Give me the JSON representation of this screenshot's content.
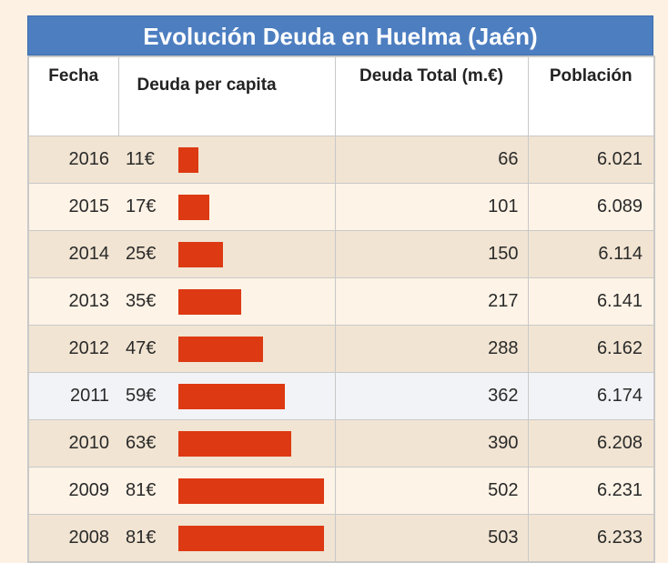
{
  "chart_data": {
    "type": "table",
    "title": "Evolución Deuda en Huelma (Jaén)",
    "columns": [
      "Fecha",
      "Deuda per capita",
      "Deuda Total (m.€)",
      "Población"
    ],
    "bar_max_value": 81,
    "bar_color": "#dd3913",
    "rows": [
      {
        "fecha": "2016",
        "per_capita_label": "11€",
        "per_capita": 11,
        "total": "66",
        "poblacion": "6.021"
      },
      {
        "fecha": "2015",
        "per_capita_label": "17€",
        "per_capita": 17,
        "total": "101",
        "poblacion": "6.089"
      },
      {
        "fecha": "2014",
        "per_capita_label": "25€",
        "per_capita": 25,
        "total": "150",
        "poblacion": "6.114"
      },
      {
        "fecha": "2013",
        "per_capita_label": "35€",
        "per_capita": 35,
        "total": "217",
        "poblacion": "6.141"
      },
      {
        "fecha": "2012",
        "per_capita_label": "47€",
        "per_capita": 47,
        "total": "288",
        "poblacion": "6.162"
      },
      {
        "fecha": "2011",
        "per_capita_label": "59€",
        "per_capita": 59,
        "total": "362",
        "poblacion": "6.174"
      },
      {
        "fecha": "2010",
        "per_capita_label": "63€",
        "per_capita": 63,
        "total": "390",
        "poblacion": "6.208"
      },
      {
        "fecha": "2009",
        "per_capita_label": "81€",
        "per_capita": 81,
        "total": "502",
        "poblacion": "6.231"
      },
      {
        "fecha": "2008",
        "per_capita_label": "81€",
        "per_capita": 81,
        "total": "503",
        "poblacion": "6.233"
      }
    ]
  },
  "colors": {
    "title_bg": "#4d7ec0",
    "page_bg": "#fdf1e3",
    "row_alt": "#f1e4d2",
    "row_plain": "#fdf3e6",
    "row_highlight": "#f2f3f6"
  }
}
